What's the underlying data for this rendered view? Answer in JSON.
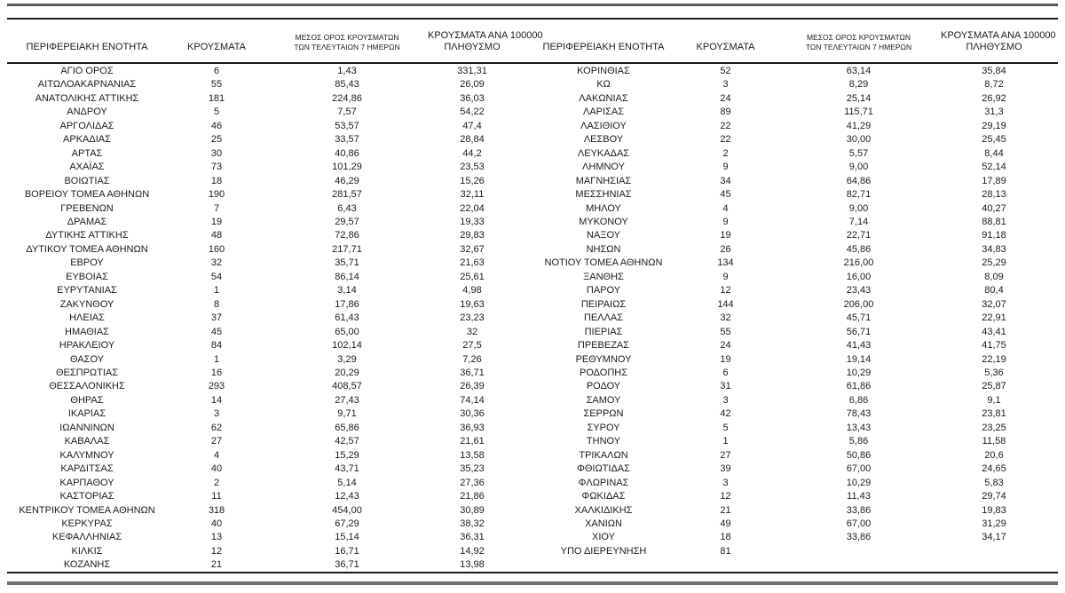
{
  "table": {
    "headers": {
      "region": "ΠΕΡΙΦΕΡΕΙΑΚΗ ΕΝΟΤΗΤΑ",
      "cases": "ΚΡΟΥΣΜΑΤΑ",
      "avg7_line1": "ΜΕΣΟΣ ΟΡΟΣ ΚΡΟΥΣΜΑΤΩΝ",
      "avg7_line2": "ΤΩΝ ΤΕΛΕΥΤΑΙΩΝ 7 ΗΜΕΡΩΝ",
      "per100k_line1": "ΚΡΟΥΣΜΑΤΑ ΑΝΑ 100000",
      "per100k_line2": "ΠΛΗΘΥΣΜΟ"
    },
    "left_rows": [
      [
        "ΑΓΙΟ ΟΡΟΣ",
        "6",
        "1,43",
        "331,31"
      ],
      [
        "ΑΙΤΩΛΟΑΚΑΡΝΑΝΙΑΣ",
        "55",
        "85,43",
        "26,09"
      ],
      [
        "ΑΝΑΤΟΛΙΚΗΣ ΑΤΤΙΚΗΣ",
        "181",
        "224,86",
        "36,03"
      ],
      [
        "ΑΝΔΡΟΥ",
        "5",
        "7,57",
        "54,22"
      ],
      [
        "ΑΡΓΟΛΙΔΑΣ",
        "46",
        "53,57",
        "47,4"
      ],
      [
        "ΑΡΚΑΔΙΑΣ",
        "25",
        "33,57",
        "28,84"
      ],
      [
        "ΑΡΤΑΣ",
        "30",
        "40,86",
        "44,2"
      ],
      [
        "ΑΧΑΪΑΣ",
        "73",
        "101,29",
        "23,53"
      ],
      [
        "ΒΟΙΩΤΙΑΣ",
        "18",
        "46,29",
        "15,26"
      ],
      [
        "ΒΟΡΕΙΟΥ ΤΟΜΕΑ ΑΘΗΝΩΝ",
        "190",
        "281,57",
        "32,11"
      ],
      [
        "ΓΡΕΒΕΝΩΝ",
        "7",
        "6,43",
        "22,04"
      ],
      [
        "ΔΡΑΜΑΣ",
        "19",
        "29,57",
        "19,33"
      ],
      [
        "ΔΥΤΙΚΗΣ ΑΤΤΙΚΗΣ",
        "48",
        "72,86",
        "29,83"
      ],
      [
        "ΔΥΤΙΚΟΥ ΤΟΜΕΑ ΑΘΗΝΩΝ",
        "160",
        "217,71",
        "32,67"
      ],
      [
        "ΕΒΡΟΥ",
        "32",
        "35,71",
        "21,63"
      ],
      [
        "ΕΥΒΟΙΑΣ",
        "54",
        "86,14",
        "25,61"
      ],
      [
        "ΕΥΡΥΤΑΝΙΑΣ",
        "1",
        "3,14",
        "4,98"
      ],
      [
        "ΖΑΚΥΝΘΟΥ",
        "8",
        "17,86",
        "19,63"
      ],
      [
        "ΗΛΕΙΑΣ",
        "37",
        "61,43",
        "23,23"
      ],
      [
        "ΗΜΑΘΙΑΣ",
        "45",
        "65,00",
        "32"
      ],
      [
        "ΗΡΑΚΛΕΙΟΥ",
        "84",
        "102,14",
        "27,5"
      ],
      [
        "ΘΑΣΟΥ",
        "1",
        "3,29",
        "7,26"
      ],
      [
        "ΘΕΣΠΡΩΤΙΑΣ",
        "16",
        "20,29",
        "36,71"
      ],
      [
        "ΘΕΣΣΑΛΟΝΙΚΗΣ",
        "293",
        "408,57",
        "26,39"
      ],
      [
        "ΘΗΡΑΣ",
        "14",
        "27,43",
        "74,14"
      ],
      [
        "ΙΚΑΡΙΑΣ",
        "3",
        "9,71",
        "30,36"
      ],
      [
        "ΙΩΑΝΝΙΝΩΝ",
        "62",
        "65,86",
        "36,93"
      ],
      [
        "ΚΑΒΑΛΑΣ",
        "27",
        "42,57",
        "21,61"
      ],
      [
        "ΚΑΛΥΜΝΟΥ",
        "4",
        "15,29",
        "13,58"
      ],
      [
        "ΚΑΡΔΙΤΣΑΣ",
        "40",
        "43,71",
        "35,23"
      ],
      [
        "ΚΑΡΠΑΘΟΥ",
        "2",
        "5,14",
        "27,36"
      ],
      [
        "ΚΑΣΤΟΡΙΑΣ",
        "11",
        "12,43",
        "21,86"
      ],
      [
        "ΚΕΝΤΡΙΚΟΥ ΤΟΜΕΑ ΑΘΗΝΩΝ",
        "318",
        "454,00",
        "30,89"
      ],
      [
        "ΚΕΡΚΥΡΑΣ",
        "40",
        "67,29",
        "38,32"
      ],
      [
        "ΚΕΦΑΛΛΗΝΙΑΣ",
        "13",
        "15,14",
        "36,31"
      ],
      [
        "ΚΙΛΚΙΣ",
        "12",
        "16,71",
        "14,92"
      ],
      [
        "ΚΟΖΑΝΗΣ",
        "21",
        "36,71",
        "13,98"
      ]
    ],
    "right_rows": [
      [
        "ΚΟΡΙΝΘΙΑΣ",
        "52",
        "63,14",
        "35,84"
      ],
      [
        "ΚΩ",
        "3",
        "8,29",
        "8,72"
      ],
      [
        "ΛΑΚΩΝΙΑΣ",
        "24",
        "25,14",
        "26,92"
      ],
      [
        "ΛΑΡΙΣΑΣ",
        "89",
        "115,71",
        "31,3"
      ],
      [
        "ΛΑΣΙΘΙΟΥ",
        "22",
        "41,29",
        "29,19"
      ],
      [
        "ΛΕΣΒΟΥ",
        "22",
        "30,00",
        "25,45"
      ],
      [
        "ΛΕΥΚΑΔΑΣ",
        "2",
        "5,57",
        "8,44"
      ],
      [
        "ΛΗΜΝΟΥ",
        "9",
        "9,00",
        "52,14"
      ],
      [
        "ΜΑΓΝΗΣΙΑΣ",
        "34",
        "64,86",
        "17,89"
      ],
      [
        "ΜΕΣΣΗΝΙΑΣ",
        "45",
        "82,71",
        "28,13"
      ],
      [
        "ΜΗΛΟΥ",
        "4",
        "9,00",
        "40,27"
      ],
      [
        "ΜΥΚΟΝΟΥ",
        "9",
        "7,14",
        "88,81"
      ],
      [
        "ΝΑΞΟΥ",
        "19",
        "22,71",
        "91,18"
      ],
      [
        "ΝΗΣΩΝ",
        "26",
        "45,86",
        "34,83"
      ],
      [
        "ΝΟΤΙΟΥ ΤΟΜΕΑ ΑΘΗΝΩΝ",
        "134",
        "216,00",
        "25,29"
      ],
      [
        "ΞΑΝΘΗΣ",
        "9",
        "16,00",
        "8,09"
      ],
      [
        "ΠΑΡΟΥ",
        "12",
        "23,43",
        "80,4"
      ],
      [
        "ΠΕΙΡΑΙΩΣ",
        "144",
        "206,00",
        "32,07"
      ],
      [
        "ΠΕΛΛΑΣ",
        "32",
        "45,71",
        "22,91"
      ],
      [
        "ΠΙΕΡΙΑΣ",
        "55",
        "56,71",
        "43,41"
      ],
      [
        "ΠΡΕΒΕΖΑΣ",
        "24",
        "41,43",
        "41,75"
      ],
      [
        "ΡΕΘΥΜΝΟΥ",
        "19",
        "19,14",
        "22,19"
      ],
      [
        "ΡΟΔΟΠΗΣ",
        "6",
        "10,29",
        "5,36"
      ],
      [
        "ΡΟΔΟΥ",
        "31",
        "61,86",
        "25,87"
      ],
      [
        "ΣΑΜΟΥ",
        "3",
        "6,86",
        "9,1"
      ],
      [
        "ΣΕΡΡΩΝ",
        "42",
        "78,43",
        "23,81"
      ],
      [
        "ΣΥΡΟΥ",
        "5",
        "13,43",
        "23,25"
      ],
      [
        "ΤΗΝΟΥ",
        "1",
        "5,86",
        "11,58"
      ],
      [
        "ΤΡΙΚΑΛΩΝ",
        "27",
        "50,86",
        "20,6"
      ],
      [
        "ΦΘΙΩΤΙΔΑΣ",
        "39",
        "67,00",
        "24,65"
      ],
      [
        "ΦΛΩΡΙΝΑΣ",
        "3",
        "10,29",
        "5,83"
      ],
      [
        "ΦΩΚΙΔΑΣ",
        "12",
        "11,43",
        "29,74"
      ],
      [
        "ΧΑΛΚΙΔΙΚΗΣ",
        "21",
        "33,86",
        "19,83"
      ],
      [
        "ΧΑΝΙΩΝ",
        "49",
        "67,00",
        "31,29"
      ],
      [
        "ΧΙΟΥ",
        "18",
        "33,86",
        "34,17"
      ],
      [
        "ΥΠΟ ΔΙΕΡΕΥΝΗΣΗ",
        "81",
        "",
        ""
      ]
    ]
  },
  "colors": {
    "text": "#1c1c1c",
    "rule_dark": "#1c1c1c",
    "rule_gray": "#6e6e6e"
  }
}
